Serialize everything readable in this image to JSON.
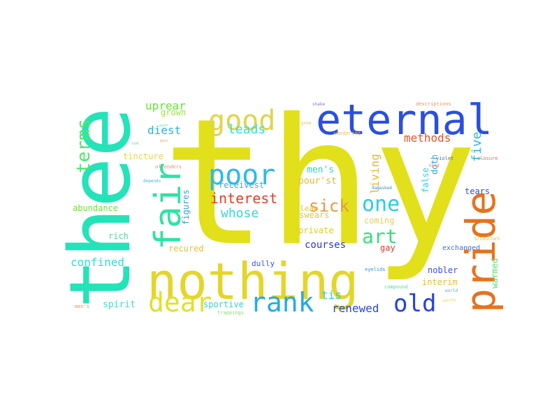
{
  "words": [
    {
      "text": "thy",
      "color": "#e1e01b"
    },
    {
      "text": "thee",
      "color": "#24e3b9"
    },
    {
      "text": "nothing",
      "color": "#e3d62a"
    },
    {
      "text": "eternal",
      "color": "#2a4fe0"
    },
    {
      "text": "pride",
      "color": "#e7721c"
    },
    {
      "text": "fair",
      "color": "#2ee3a3"
    },
    {
      "text": "poor",
      "color": "#2bbaed"
    },
    {
      "text": "good",
      "color": "#e3d34a"
    },
    {
      "text": "rank",
      "color": "#25a9ec"
    },
    {
      "text": "dear",
      "color": "#e0e02a"
    },
    {
      "text": "old",
      "color": "#2342e3"
    },
    {
      "text": "one",
      "color": "#2bcbe7"
    },
    {
      "text": "art",
      "color": "#34e07a"
    },
    {
      "text": "terms",
      "color": "#4fe86a"
    },
    {
      "text": "sick",
      "color": "#e89a3b"
    },
    {
      "text": "interest",
      "color": "#e2402a"
    },
    {
      "text": "whose",
      "color": "#33d8d0"
    },
    {
      "text": "leads",
      "color": "#2de1dc"
    },
    {
      "text": "five",
      "color": "#2bbbe3"
    },
    {
      "text": "methods",
      "color": "#e2542a"
    },
    {
      "text": "uprear",
      "color": "#66e23a"
    },
    {
      "text": "diest",
      "color": "#2cb3da"
    },
    {
      "text": "living",
      "color": "#e3bd2a"
    },
    {
      "text": "confined",
      "color": "#34dcd7"
    },
    {
      "text": "tis",
      "color": "#2ecde2"
    },
    {
      "text": "renewed",
      "color": "#2a46d9"
    },
    {
      "text": "courses",
      "color": "#2a39d8"
    },
    {
      "text": "men's",
      "color": "#2fd6b2"
    },
    {
      "text": "pour'st",
      "color": "#e6bb2a"
    },
    {
      "text": "tincture",
      "color": "#e7d34a"
    },
    {
      "text": "grown",
      "color": "#9ae63a"
    },
    {
      "text": "receivest",
      "color": "#3aa7e8"
    },
    {
      "text": "swears",
      "color": "#e6c43a"
    },
    {
      "text": "private",
      "color": "#e2c72a"
    },
    {
      "text": "coming",
      "color": "#e6d05a"
    },
    {
      "text": "doth",
      "color": "#2aa3df"
    },
    {
      "text": "false",
      "color": "#2fd1e3"
    },
    {
      "text": "tears",
      "color": "#2a4fdf"
    },
    {
      "text": "leap",
      "color": "#e0c23a"
    },
    {
      "text": "abundance",
      "color": "#6ee23a"
    },
    {
      "text": "figures",
      "color": "#3aa0de"
    },
    {
      "text": "recured",
      "color": "#e3c23a"
    },
    {
      "text": "rich",
      "color": "#55d69a"
    },
    {
      "text": "dully",
      "color": "#3a56d9"
    },
    {
      "text": "gay",
      "color": "#e33a2a"
    },
    {
      "text": "nobler",
      "color": "#3a4edf"
    },
    {
      "text": "interim",
      "color": "#e6c02a"
    },
    {
      "text": "warmed",
      "color": "#5ae06a"
    },
    {
      "text": "exchanged",
      "color": "#3a70d9"
    },
    {
      "text": "shadows",
      "color": "#e3d06a"
    },
    {
      "text": "spirit",
      "color": "#45d9c7"
    },
    {
      "text": "sportive",
      "color": "#3acdc9"
    },
    {
      "text": "trappings",
      "color": "#8ad96a"
    },
    {
      "text": "compound",
      "color": "#53d9a2"
    },
    {
      "text": "eyelids",
      "color": "#3a8ad9"
    },
    {
      "text": "world",
      "color": "#5aa5e0"
    },
    {
      "text": "worth",
      "color": "#e3d55a"
    },
    {
      "text": "men's",
      "color": "#e6936a"
    },
    {
      "text": "damasked",
      "color": "#3a8ad9"
    },
    {
      "text": "offenders",
      "color": "#e89070"
    },
    {
      "text": "depends",
      "color": "#3ab4e6"
    },
    {
      "text": "violet",
      "color": "#5a60d9"
    },
    {
      "text": "hold",
      "color": "#e88060"
    },
    {
      "text": "closure",
      "color": "#e66a5a"
    },
    {
      "text": "descriptions",
      "color": "#e6945a"
    },
    {
      "text": "shake",
      "color": "#7a7ae0"
    },
    {
      "text": "wandering",
      "color": "#e6c05a"
    },
    {
      "text": "gone",
      "color": "#e6c05a"
    },
    {
      "text": "sue",
      "color": "#6ad9c0"
    },
    {
      "text": "poor",
      "color": "#e6a05a"
    },
    {
      "text": "gaze",
      "color": "#6ae0a0"
    }
  ]
}
